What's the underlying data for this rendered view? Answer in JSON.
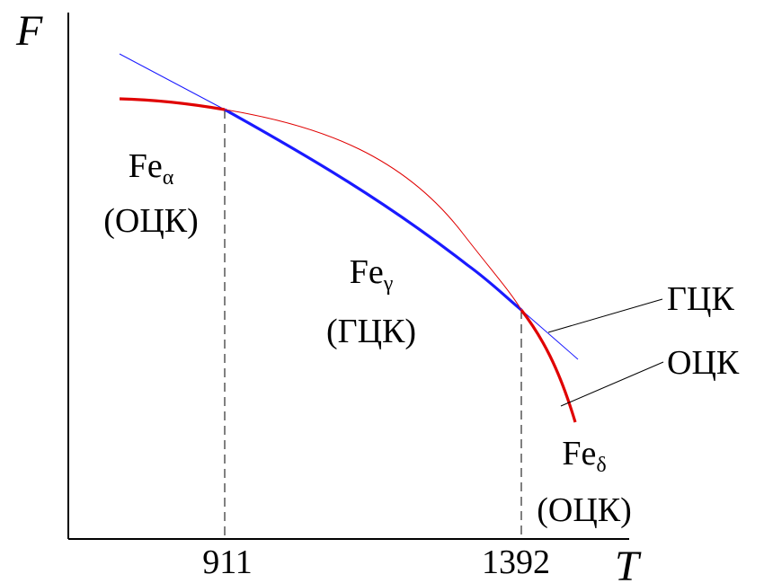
{
  "axes": {
    "y_label": "F",
    "x_label": "T",
    "x_ticks": [
      "911",
      "1392"
    ]
  },
  "phases": {
    "alpha": {
      "base": "Fe",
      "sub": "α",
      "lattice": "(ОЦК)"
    },
    "gamma": {
      "base": "Fe",
      "sub": "γ",
      "lattice": "(ГЦК)"
    },
    "delta": {
      "base": "Fe",
      "sub": "δ",
      "lattice": "(ОЦК)"
    }
  },
  "curve_labels": {
    "fcc": "ГЦК",
    "bcc": "ОЦК"
  },
  "colors": {
    "fcc_curve": "#1a1aff",
    "bcc_curve": "#e00000",
    "axes": "#000000"
  }
}
